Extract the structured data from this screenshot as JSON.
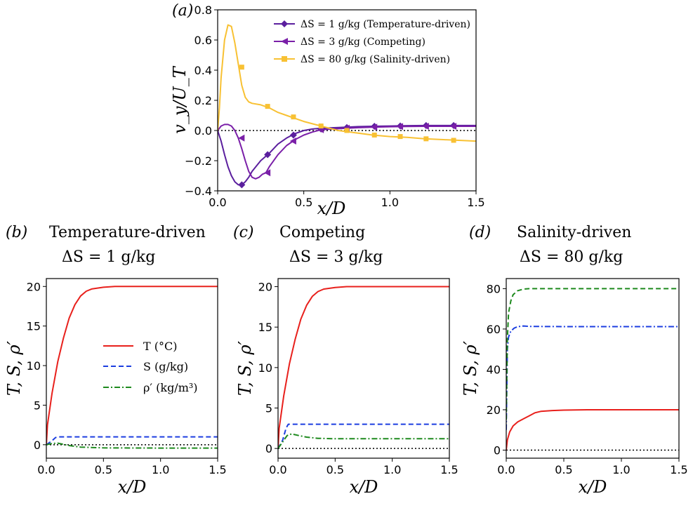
{
  "chart_data": [
    {
      "id": "a",
      "type": "line",
      "panel_label": "(a)",
      "xlabel": "x/D",
      "ylabel": "v_y/U_T",
      "xlim": [
        0.0,
        1.5
      ],
      "ylim": [
        -0.4,
        0.8
      ],
      "xticks": [
        "0.0",
        "0.5",
        "1.0",
        "1.5"
      ],
      "yticks": [
        "−0.4",
        "−0.2",
        "0.0",
        "0.2",
        "0.4",
        "0.6",
        "0.8"
      ],
      "legend_position": "top-right",
      "reference_line": 0,
      "series": [
        {
          "name": "ΔS = 1 g/kg (Temperature-driven)",
          "color": "#5b1f9e",
          "marker": "diamond",
          "x": [
            0.0,
            0.02,
            0.04,
            0.06,
            0.08,
            0.1,
            0.12,
            0.14,
            0.16,
            0.18,
            0.2,
            0.25,
            0.3,
            0.35,
            0.4,
            0.45,
            0.5,
            0.55,
            0.6,
            0.7,
            0.8,
            0.9,
            1.0,
            1.1,
            1.2,
            1.3,
            1.4,
            1.5
          ],
          "y": [
            0.0,
            -0.07,
            -0.16,
            -0.24,
            -0.3,
            -0.34,
            -0.36,
            -0.36,
            -0.34,
            -0.31,
            -0.27,
            -0.2,
            -0.15,
            -0.09,
            -0.05,
            -0.02,
            0.0,
            0.01,
            0.015,
            0.02,
            0.025,
            0.028,
            0.03,
            0.032,
            0.033,
            0.033,
            0.033,
            0.033
          ],
          "marker_x": [
            0.14,
            0.29,
            0.44,
            0.6,
            0.75,
            0.91,
            1.06,
            1.21,
            1.37
          ],
          "marker_y": [
            -0.36,
            -0.16,
            -0.03,
            0.01,
            0.02,
            0.028,
            0.03,
            0.033,
            0.033
          ]
        },
        {
          "name": "ΔS = 3 g/kg (Competing)",
          "color": "#7a1fa8",
          "marker": "triangle-left",
          "x": [
            0.0,
            0.02,
            0.04,
            0.06,
            0.08,
            0.1,
            0.12,
            0.14,
            0.16,
            0.18,
            0.2,
            0.22,
            0.24,
            0.26,
            0.28,
            0.3,
            0.35,
            0.4,
            0.45,
            0.5,
            0.55,
            0.6,
            0.7,
            0.8,
            0.9,
            1.0,
            1.1,
            1.2,
            1.3,
            1.4,
            1.5
          ],
          "y": [
            0.0,
            0.03,
            0.04,
            0.04,
            0.03,
            0.0,
            -0.05,
            -0.12,
            -0.2,
            -0.27,
            -0.31,
            -0.32,
            -0.31,
            -0.29,
            -0.28,
            -0.24,
            -0.16,
            -0.1,
            -0.06,
            -0.03,
            -0.01,
            0.005,
            0.012,
            0.018,
            0.022,
            0.025,
            0.027,
            0.028,
            0.028,
            0.028,
            0.028
          ],
          "marker_x": [
            0.14,
            0.29,
            0.44,
            0.6,
            0.75,
            0.91,
            1.06,
            1.21,
            1.37
          ],
          "marker_y": [
            -0.05,
            -0.28,
            -0.07,
            0.005,
            0.015,
            0.022,
            0.026,
            0.028,
            0.028
          ]
        },
        {
          "name": "ΔS = 80 g/kg (Salinity-driven)",
          "color": "#f8c133",
          "marker": "square",
          "x": [
            0.0,
            0.01,
            0.02,
            0.04,
            0.06,
            0.08,
            0.1,
            0.12,
            0.14,
            0.16,
            0.18,
            0.2,
            0.25,
            0.3,
            0.35,
            0.4,
            0.45,
            0.5,
            0.6,
            0.7,
            0.8,
            0.9,
            1.0,
            1.1,
            1.2,
            1.3,
            1.4,
            1.5
          ],
          "y": [
            0.0,
            0.15,
            0.35,
            0.6,
            0.7,
            0.69,
            0.58,
            0.44,
            0.3,
            0.22,
            0.19,
            0.18,
            0.17,
            0.15,
            0.12,
            0.1,
            0.08,
            0.06,
            0.03,
            0.0,
            -0.015,
            -0.03,
            -0.04,
            -0.045,
            -0.055,
            -0.06,
            -0.065,
            -0.07
          ],
          "marker_x": [
            0.14,
            0.29,
            0.44,
            0.6,
            0.75,
            0.91,
            1.06,
            1.21,
            1.37
          ],
          "marker_y": [
            0.42,
            0.16,
            0.09,
            0.03,
            0.0,
            -0.03,
            -0.04,
            -0.055,
            -0.065
          ]
        }
      ]
    },
    {
      "id": "b",
      "type": "line",
      "panel_label": "(b)",
      "title": "Temperature-driven",
      "subtitle": "ΔS = 1 g/kg",
      "xlabel": "x/D",
      "ylabel": "T, S, ρ′",
      "xlim": [
        0.0,
        1.5
      ],
      "ylim": [
        -1.7,
        21
      ],
      "xticks": [
        "0.0",
        "0.5",
        "1.0",
        "1.5"
      ],
      "yticks": [
        "0",
        "5",
        "10",
        "15",
        "20"
      ],
      "ytick_values": [
        0,
        5,
        10,
        15,
        20
      ],
      "legend_position": "center-right",
      "reference_line": 0,
      "series": [
        {
          "name": "T (°C)",
          "color": "#e8201c",
          "style": "solid",
          "x": [
            0.0,
            0.01,
            0.05,
            0.1,
            0.15,
            0.2,
            0.25,
            0.3,
            0.35,
            0.4,
            0.5,
            0.6,
            0.7,
            0.8,
            1.0,
            1.2,
            1.5
          ],
          "y": [
            0.0,
            2.5,
            6.5,
            10.5,
            13.5,
            16.0,
            17.7,
            18.8,
            19.4,
            19.7,
            19.9,
            20.0,
            20.0,
            20.0,
            20.0,
            20.0,
            20.0
          ]
        },
        {
          "name": "S (g/kg)",
          "color": "#1c3ee0",
          "style": "dashed",
          "x": [
            0.0,
            0.05,
            0.08,
            0.1,
            0.2,
            0.5,
            1.0,
            1.5
          ],
          "y": [
            0.0,
            0.5,
            0.9,
            1.0,
            1.0,
            1.0,
            1.0,
            1.0
          ]
        },
        {
          "name": "ρ′ (kg/m³)",
          "color": "#1e8a1e",
          "style": "dashdot",
          "x": [
            0.0,
            0.05,
            0.1,
            0.15,
            0.2,
            0.3,
            0.5,
            1.0,
            1.5
          ],
          "y": [
            0.0,
            0.15,
            0.2,
            0.05,
            -0.1,
            -0.3,
            -0.4,
            -0.42,
            -0.42
          ]
        }
      ]
    },
    {
      "id": "c",
      "type": "line",
      "panel_label": "(c)",
      "title": "Competing",
      "subtitle": "ΔS = 3 g/kg",
      "xlabel": "x/D",
      "ylabel": "T, S, ρ′",
      "xlim": [
        0.0,
        1.5
      ],
      "ylim": [
        -1.2,
        21
      ],
      "xticks": [
        "0.0",
        "0.5",
        "1.0",
        "1.5"
      ],
      "yticks": [
        "0",
        "5",
        "10",
        "15",
        "20"
      ],
      "ytick_values": [
        0,
        5,
        10,
        15,
        20
      ],
      "reference_line": 0,
      "series": [
        {
          "name": "T (°C)",
          "color": "#e8201c",
          "style": "solid",
          "x": [
            0.0,
            0.01,
            0.05,
            0.1,
            0.15,
            0.2,
            0.25,
            0.3,
            0.35,
            0.4,
            0.5,
            0.6,
            0.7,
            0.8,
            1.0,
            1.2,
            1.5
          ],
          "y": [
            0.0,
            2.5,
            6.5,
            10.5,
            13.5,
            16.0,
            17.7,
            18.8,
            19.4,
            19.7,
            19.9,
            20.0,
            20.0,
            20.0,
            20.0,
            20.0,
            20.0
          ]
        },
        {
          "name": "S (g/kg)",
          "color": "#1c3ee0",
          "style": "dashed",
          "x": [
            0.0,
            0.04,
            0.07,
            0.09,
            0.12,
            0.2,
            0.5,
            1.0,
            1.5
          ],
          "y": [
            0.0,
            1.0,
            2.5,
            3.0,
            3.0,
            3.0,
            3.0,
            3.0,
            3.0
          ]
        },
        {
          "name": "ρ′ (kg/m³)",
          "color": "#1e8a1e",
          "style": "dashdot",
          "x": [
            0.0,
            0.04,
            0.08,
            0.12,
            0.18,
            0.25,
            0.35,
            0.5,
            1.0,
            1.5
          ],
          "y": [
            0.0,
            0.8,
            1.6,
            1.8,
            1.6,
            1.4,
            1.25,
            1.2,
            1.2,
            1.2
          ]
        }
      ]
    },
    {
      "id": "d",
      "type": "line",
      "panel_label": "(d)",
      "title": "Salinity-driven",
      "subtitle": "ΔS = 80 g/kg",
      "xlabel": "x/D",
      "ylabel": "T, S, ρ′",
      "xlim": [
        0.0,
        1.5
      ],
      "ylim": [
        -4,
        85
      ],
      "xticks": [
        "0.0",
        "0.5",
        "1.0",
        "1.5"
      ],
      "yticks": [
        "0",
        "20",
        "40",
        "60",
        "80"
      ],
      "ytick_values": [
        0,
        20,
        40,
        60,
        80
      ],
      "reference_line": 0,
      "series": [
        {
          "name": "T (°C)",
          "color": "#e8201c",
          "style": "solid",
          "x": [
            0.0,
            0.01,
            0.03,
            0.06,
            0.1,
            0.15,
            0.2,
            0.25,
            0.3,
            0.4,
            0.5,
            0.7,
            1.0,
            1.5
          ],
          "y": [
            0.0,
            5.0,
            9.0,
            12.0,
            14.0,
            15.5,
            17.0,
            18.5,
            19.2,
            19.6,
            19.8,
            20.0,
            20.0,
            20.0
          ]
        },
        {
          "name": "S (g/kg)",
          "color": "#1c3ee0",
          "style": "dashdot",
          "x": [
            0.0,
            0.01,
            0.02,
            0.04,
            0.07,
            0.1,
            0.15,
            0.2,
            0.5,
            1.0,
            1.5
          ],
          "y": [
            10.0,
            50.0,
            56.0,
            59.0,
            60.5,
            61.2,
            61.5,
            61.3,
            61.2,
            61.2,
            61.2
          ]
        },
        {
          "name": "ρ′ (kg/m³)",
          "color": "#1e8a1e",
          "style": "dashed",
          "x": [
            0.0,
            0.01,
            0.02,
            0.04,
            0.06,
            0.1,
            0.15,
            0.2,
            0.3,
            0.5,
            1.0,
            1.5
          ],
          "y": [
            15.0,
            55.0,
            68.0,
            74.0,
            77.0,
            79.0,
            79.8,
            80.0,
            80.0,
            80.0,
            80.0,
            80.0
          ]
        }
      ]
    }
  ]
}
